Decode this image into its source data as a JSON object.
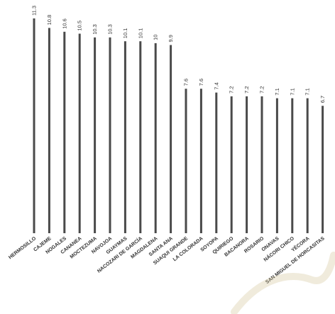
{
  "chart_data": {
    "type": "bar",
    "title": "",
    "xlabel": "",
    "ylabel": "",
    "ylim": [
      0,
      11.3
    ],
    "bar_color": "#4a4a4a",
    "label_color": "#333333",
    "watermark_color": "#d4c79a",
    "categories": [
      "HERMOSILLO",
      "CAJEME",
      "NOGALES",
      "CANANEA",
      "MOCTEZUMA",
      "NAVOJOA",
      "GUAYMAS",
      "NACOZARI DE GARCÍA",
      "MAGDALENA",
      "SANTA ANA",
      "SUAQUI GRANDE",
      "LA COLORADA",
      "SOYOPA",
      "QUIRIEGO",
      "BACANORA",
      "ROSARIO",
      "ONAVAS",
      "NÁCORI CHICO",
      "YÉCORA",
      "SAN MIGUEL DE HORCASITAS"
    ],
    "values": [
      11.3,
      10.8,
      10.6,
      10.5,
      10.3,
      10.3,
      10.1,
      10.1,
      10,
      9.9,
      7.6,
      7.6,
      7.4,
      7.2,
      7.2,
      7.2,
      7.1,
      7.1,
      7.1,
      6.7
    ],
    "value_labels": [
      "11.3",
      "10.8",
      "10.6",
      "10.5",
      "10.3",
      "10.3",
      "10.1",
      "10.1",
      "10",
      "9.9",
      "7.6",
      "7.6",
      "7.4",
      "7.2",
      "7.2",
      "7.2",
      "7.1",
      "7.1",
      "7.1",
      "6.7"
    ]
  }
}
